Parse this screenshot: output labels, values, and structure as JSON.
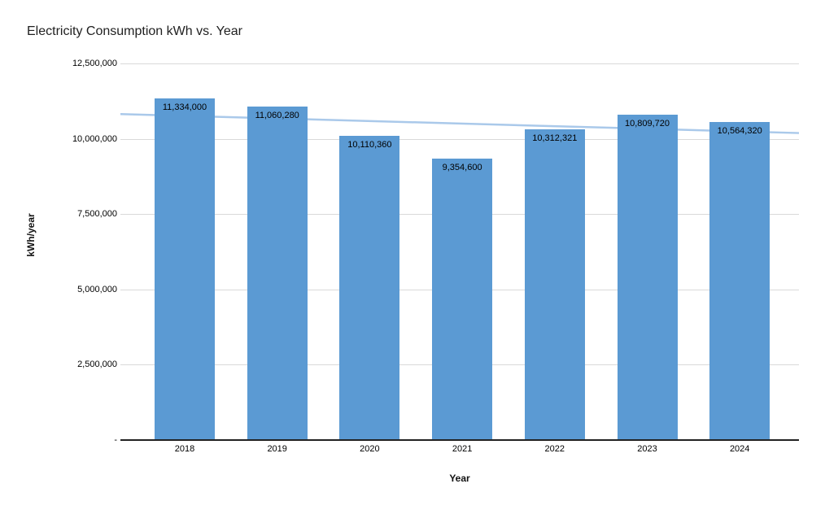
{
  "chart_data": {
    "type": "bar",
    "title": "Electricity Consumption kWh vs. Year",
    "xlabel": "Year",
    "ylabel": "kWh/year",
    "categories": [
      "2018",
      "2019",
      "2020",
      "2021",
      "2022",
      "2023",
      "2024"
    ],
    "values": [
      11334000,
      11060280,
      10110360,
      9354600,
      10312321,
      10809720,
      10564320
    ],
    "bar_labels": [
      "11,334,000",
      "11,060,280",
      "10,110,360",
      "9,354,600",
      "10,312,321",
      "10,809,720",
      "10,564,320"
    ],
    "ylim": [
      0,
      12500000
    ],
    "y_ticks": [
      {
        "value": 12500000,
        "label": "12,500,000"
      },
      {
        "value": 10000000,
        "label": "10,000,000"
      },
      {
        "value": 7500000,
        "label": "7,500,000"
      },
      {
        "value": 5000000,
        "label": "5,000,000"
      },
      {
        "value": 2500000,
        "label": "2,500,000"
      },
      {
        "value": 0,
        "label": "-"
      }
    ],
    "grid": true,
    "legend_position": "none",
    "trendline": {
      "type": "linear",
      "start_value": 10820000,
      "end_value": 10190000
    },
    "colors": {
      "bar": "#5b9ad3",
      "trendline": "#aac9ea",
      "gridline": "#d9d9d9",
      "axis_line": "#222222",
      "title_text": "#212121",
      "label_text": "#000000"
    }
  }
}
